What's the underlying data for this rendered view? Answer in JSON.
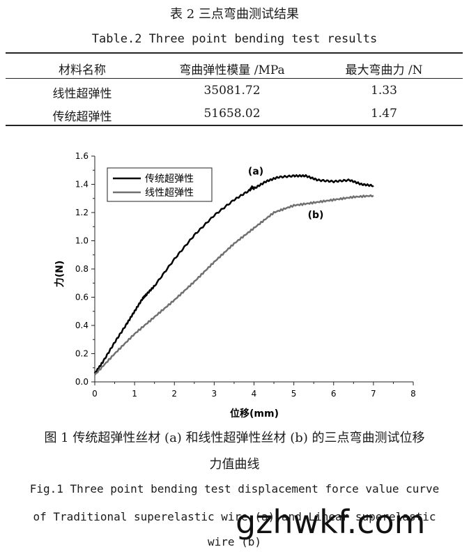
{
  "table": {
    "caption_cn": "表 2   三点弯曲测试结果",
    "caption_en": "Table.2  Three point bending test results",
    "headers": [
      "材料名称",
      "弯曲弹性模量 /MPa",
      "最大弯曲力 /N"
    ],
    "rows": [
      [
        "线性超弹性",
        "35081.72",
        "1.33"
      ],
      [
        "传统超弹性",
        "51658.02",
        "1.47"
      ]
    ]
  },
  "figure": {
    "caption_cn_line1": "图 1   传统超弹性丝材 (a) 和线性超弹性丝材 (b) 的三点弯曲测试位移",
    "caption_cn_line2": "力值曲线",
    "caption_en_line1": "Fig.1  Three point bending test displacement force value curve",
    "caption_en_line2": "of Traditional superelastic wire (a) and Linear superelastic",
    "caption_en_line3": "wire (b)"
  },
  "watermark": "gzhwkf.com",
  "chart_data": {
    "type": "line",
    "title": "",
    "xlabel": "位移(mm)",
    "ylabel": "力(N)",
    "xlim": [
      0,
      8
    ],
    "ylim": [
      0,
      1.6
    ],
    "xticks": [
      "0",
      "1",
      "2",
      "3",
      "4",
      "5",
      "6",
      "7",
      "8"
    ],
    "yticks": [
      "0.0",
      "0.2",
      "0.4",
      "0.6",
      "0.8",
      "1.0",
      "1.2",
      "1.4",
      "1.6"
    ],
    "legend": [
      "传统超弹性",
      "线性超弹性"
    ],
    "legend_position": "top-left",
    "series": [
      {
        "name": "传统超弹性",
        "annotation": "(a)",
        "color": "#000000",
        "x": [
          0,
          0.2,
          0.5,
          0.8,
          1.0,
          1.2,
          1.3,
          1.5,
          2.0,
          2.5,
          3.0,
          3.5,
          3.9,
          3.95,
          4.0,
          4.3,
          4.6,
          5.0,
          5.3,
          5.6,
          6.0,
          6.4,
          6.7,
          7.0
        ],
        "y": [
          0.06,
          0.14,
          0.28,
          0.41,
          0.5,
          0.59,
          0.62,
          0.68,
          0.87,
          1.04,
          1.18,
          1.29,
          1.36,
          1.38,
          1.37,
          1.42,
          1.45,
          1.46,
          1.46,
          1.43,
          1.42,
          1.43,
          1.4,
          1.39
        ]
      },
      {
        "name": "线性超弹性",
        "annotation": "(b)",
        "color": "#707070",
        "x": [
          0,
          0.5,
          1.0,
          1.5,
          2.0,
          2.5,
          3.0,
          3.5,
          4.0,
          4.5,
          5.0,
          5.5,
          6.0,
          6.5,
          7.0
        ],
        "y": [
          0.05,
          0.2,
          0.34,
          0.46,
          0.58,
          0.71,
          0.85,
          0.98,
          1.09,
          1.2,
          1.25,
          1.27,
          1.29,
          1.31,
          1.32
        ]
      }
    ]
  }
}
